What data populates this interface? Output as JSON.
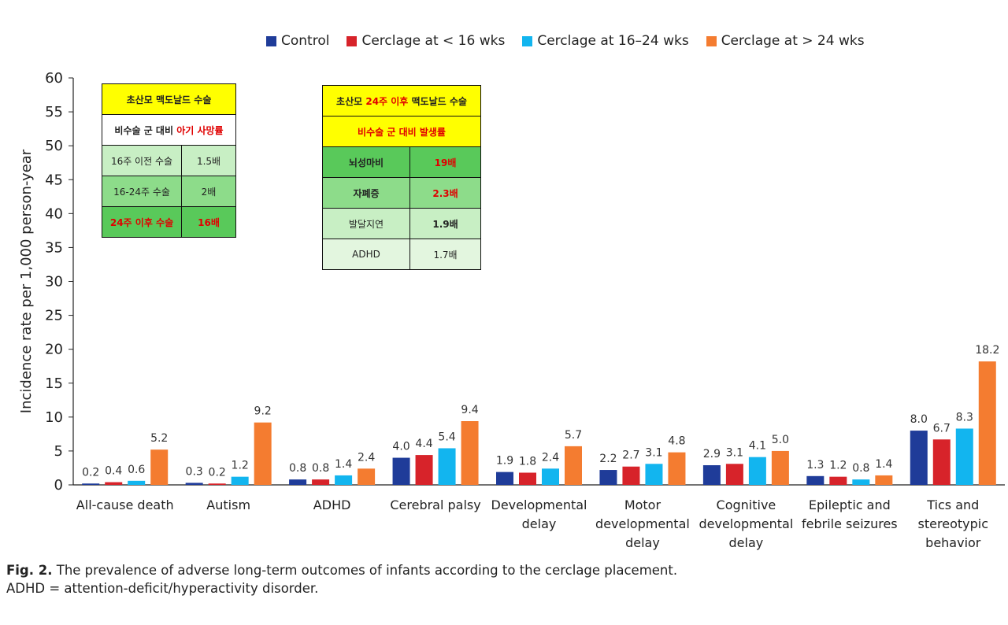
{
  "chart_data": {
    "type": "bar",
    "ylabel": "Incidence rate per 1,000 person-year",
    "ylim": [
      0,
      60
    ],
    "yticks": [
      0,
      5,
      10,
      15,
      20,
      25,
      30,
      35,
      40,
      45,
      50,
      55,
      60
    ],
    "categories": [
      [
        "All-cause death"
      ],
      [
        "Autism"
      ],
      [
        "ADHD"
      ],
      [
        "Cerebral palsy"
      ],
      [
        "Developmental",
        "delay"
      ],
      [
        "Motor",
        "developmental",
        "delay"
      ],
      [
        "Cognitive",
        "developmental",
        "delay"
      ],
      [
        "Epileptic and",
        "febrile seizures"
      ],
      [
        "Tics and",
        "stereotypic",
        "behavior"
      ]
    ],
    "series": [
      {
        "name": "Control",
        "color": "#1f3c99",
        "values": [
          0.2,
          0.3,
          0.8,
          4.0,
          1.9,
          2.2,
          2.9,
          1.3,
          8.0
        ]
      },
      {
        "name": "Cerclage at < 16 wks",
        "color": "#d7232a",
        "values": [
          0.4,
          0.2,
          0.8,
          4.4,
          1.8,
          2.7,
          3.1,
          1.2,
          6.7
        ]
      },
      {
        "name": "Cerclage at 16–24 wks",
        "color": "#12b5ef",
        "values": [
          0.6,
          1.2,
          1.4,
          5.4,
          2.4,
          3.1,
          4.1,
          0.8,
          8.3
        ]
      },
      {
        "name": "Cerclage at > 24 wks",
        "color": "#f47c30",
        "values": [
          5.2,
          9.2,
          2.4,
          9.4,
          5.7,
          4.8,
          5.0,
          1.4,
          18.2
        ]
      }
    ],
    "legend_position": "top",
    "grid": false
  },
  "table1": {
    "header": "초산모 맥도날드 수술",
    "subheader_black": "비수술 군 대비 ",
    "subheader_red": "아기 사망률",
    "rows": [
      {
        "label": "16주 이전 수술",
        "value": "1.5배"
      },
      {
        "label": "16-24주 수술",
        "value": "2배"
      },
      {
        "label": "24주 이후 수술",
        "value": "16배"
      }
    ]
  },
  "table2": {
    "header_a": "초산모 ",
    "header_red": "24주 이후",
    "header_b": " 맥도날드 수술",
    "subheader": "비수술 군 대비 발생률",
    "rows": [
      {
        "label": "뇌성마비",
        "value": "19배"
      },
      {
        "label": "자폐증",
        "value": "2.3배"
      },
      {
        "label": "발달지연",
        "value": "1.9배"
      },
      {
        "label": "ADHD",
        "value": "1.7배"
      }
    ]
  },
  "caption": {
    "fig_label": "Fig. 2.",
    "text": " The prevalence of adverse long-term outcomes of infants according to the cerclage placement.",
    "note": "ADHD = attention-deficit/hyperactivity disorder."
  }
}
